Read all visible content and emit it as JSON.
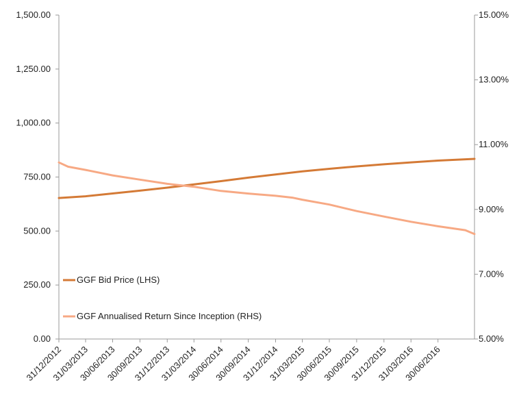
{
  "chart_data": {
    "type": "line",
    "title": "",
    "xlabel": "",
    "ylabel_left": "",
    "ylabel_right": "",
    "x_ticks": [
      "31/12/2012",
      "31/03/2013",
      "30/06/2013",
      "30/09/2013",
      "31/12/2013",
      "31/03/2014",
      "30/06/2014",
      "30/09/2014",
      "31/12/2014",
      "31/03/2015",
      "30/06/2015",
      "30/09/2015",
      "31/12/2015",
      "31/03/2016",
      "30/06/2016"
    ],
    "x_range": [
      "31/12/2012",
      "31/10/2016"
    ],
    "y_left": {
      "range": [
        0,
        1500
      ],
      "ticks": [
        "0.00",
        "250.00",
        "500.00",
        "750.00",
        "1,000.00",
        "1,250.00",
        "1,500.00"
      ]
    },
    "y_right": {
      "range": [
        5,
        15
      ],
      "ticks": [
        "5.00%",
        "7.00%",
        "9.00%",
        "11.00%",
        "13.00%",
        "15.00%"
      ]
    },
    "grid": false,
    "legend_position": "bottom-left",
    "series": [
      {
        "name": "GGF Bid Price (LHS)",
        "axis": "left",
        "color": "#d47a36",
        "points": [
          [
            "31/12/2012",
            653
          ],
          [
            "31/03/2013",
            661
          ],
          [
            "30/06/2013",
            674
          ],
          [
            "30/09/2013",
            687
          ],
          [
            "31/12/2013",
            701
          ],
          [
            "31/03/2014",
            716
          ],
          [
            "30/06/2014",
            731
          ],
          [
            "30/09/2014",
            747
          ],
          [
            "31/12/2014",
            762
          ],
          [
            "31/03/2015",
            776
          ],
          [
            "30/06/2015",
            788
          ],
          [
            "30/09/2015",
            799
          ],
          [
            "31/12/2015",
            809
          ],
          [
            "31/03/2016",
            818
          ],
          [
            "30/06/2016",
            826
          ],
          [
            "31/10/2016",
            834
          ]
        ]
      },
      {
        "name": "GGF Annualised Return Since Inception (RHS)",
        "axis": "right",
        "color": "#f7a984",
        "points": [
          [
            "31/12/2012",
            10.45
          ],
          [
            "31/01/2013",
            10.32
          ],
          [
            "31/03/2013",
            10.22
          ],
          [
            "30/06/2013",
            10.05
          ],
          [
            "30/09/2013",
            9.92
          ],
          [
            "31/12/2013",
            9.79
          ],
          [
            "31/03/2014",
            9.7
          ],
          [
            "30/06/2014",
            9.57
          ],
          [
            "30/09/2014",
            9.49
          ],
          [
            "31/12/2014",
            9.42
          ],
          [
            "28/02/2015",
            9.36
          ],
          [
            "31/03/2015",
            9.3
          ],
          [
            "30/06/2015",
            9.15
          ],
          [
            "30/09/2015",
            8.95
          ],
          [
            "31/12/2015",
            8.78
          ],
          [
            "31/03/2016",
            8.62
          ],
          [
            "30/06/2016",
            8.48
          ],
          [
            "30/09/2016",
            8.36
          ],
          [
            "31/10/2016",
            8.24
          ]
        ]
      }
    ]
  }
}
